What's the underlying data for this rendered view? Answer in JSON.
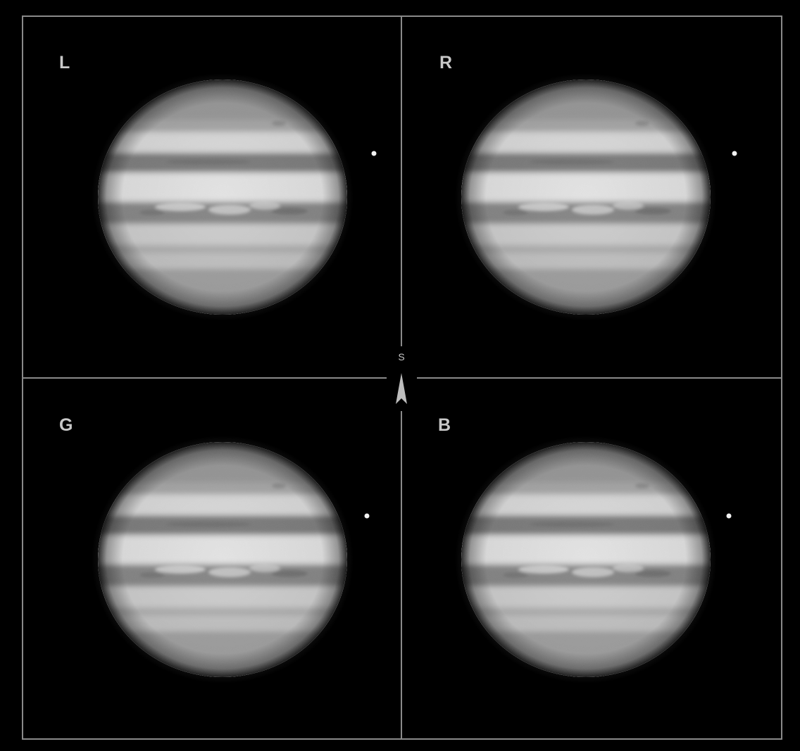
{
  "panels": [
    {
      "label": "L"
    },
    {
      "label": "R"
    },
    {
      "label": "G"
    },
    {
      "label": "B"
    }
  ],
  "orientation": {
    "label": "S"
  },
  "colors": {
    "background": "#000000",
    "frame": "#8a8a8a",
    "label": "#c8c8c8",
    "planet_light": "#e6e6e6",
    "planet_dark": "#6e6e6e"
  },
  "icons": {
    "orientation_marker": "arrow-up-icon",
    "moon": "moon-dot"
  }
}
